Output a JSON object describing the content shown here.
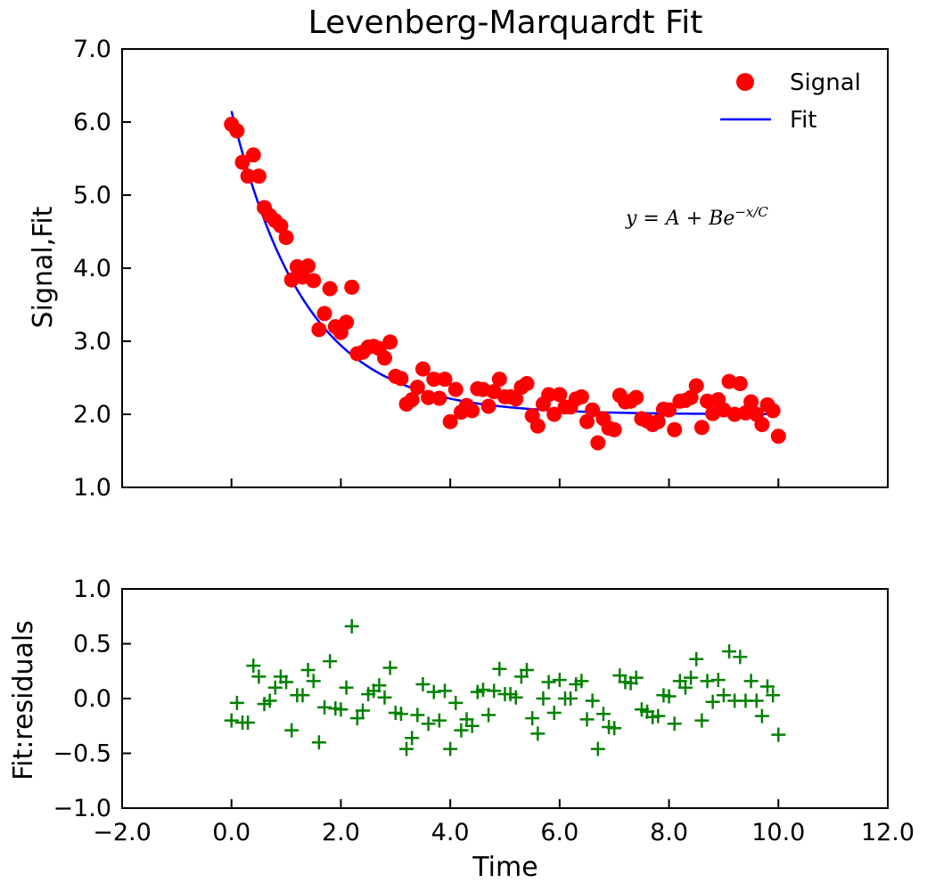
{
  "chart_data": [
    {
      "type": "scatter",
      "title": "Levenberg-Marquardt Fit",
      "xlabel": "",
      "ylabel": "Signal,Fit",
      "xlim": [
        -2,
        12
      ],
      "ylim": [
        1,
        7
      ],
      "xticks": [
        0,
        2,
        4,
        6,
        8,
        10
      ],
      "yticks": [
        1,
        2,
        3,
        4,
        5,
        6,
        7
      ],
      "ytick_labels": [
        "1.0",
        "2.0",
        "3.0",
        "4.0",
        "5.0",
        "6.0",
        "7.0"
      ],
      "legend": {
        "position": "top-right",
        "entries": [
          "Signal",
          "Fit"
        ]
      },
      "annotation": {
        "prefix": "y = A + Be",
        "superscript": "−x/C"
      },
      "fit_params": {
        "A": 2.0,
        "B": 4.15,
        "C": 1.35
      },
      "series": [
        {
          "name": "Signal",
          "kind": "scatter",
          "color": "#ff0000",
          "marker": "circle",
          "x": [
            0.0,
            0.1,
            0.2,
            0.3,
            0.4,
            0.5,
            0.6,
            0.7,
            0.8,
            0.9,
            1.0,
            1.1,
            1.2,
            1.3,
            1.4,
            1.5,
            1.6,
            1.7,
            1.8,
            1.9,
            2.0,
            2.1,
            2.2,
            2.3,
            2.4,
            2.5,
            2.6,
            2.7,
            2.8,
            2.9,
            3.0,
            3.1,
            3.2,
            3.3,
            3.4,
            3.5,
            3.6,
            3.7,
            3.8,
            3.9,
            4.0,
            4.1,
            4.2,
            4.3,
            4.4,
            4.5,
            4.6,
            4.7,
            4.8,
            4.9,
            5.0,
            5.1,
            5.2,
            5.3,
            5.4,
            5.5,
            5.6,
            5.7,
            5.8,
            5.9,
            6.0,
            6.1,
            6.2,
            6.3,
            6.4,
            6.5,
            6.6,
            6.7,
            6.8,
            6.9,
            7.0,
            7.1,
            7.2,
            7.3,
            7.4,
            7.5,
            7.6,
            7.7,
            7.8,
            7.9,
            8.0,
            8.1,
            8.2,
            8.3,
            8.4,
            8.5,
            8.6,
            8.7,
            8.8,
            8.9,
            9.0,
            9.1,
            9.2,
            9.3,
            9.4,
            9.5,
            9.6,
            9.7,
            9.8,
            9.9,
            10.0
          ],
          "y": [
            5.97,
            5.88,
            5.45,
            5.26,
            5.55,
            5.26,
            4.83,
            4.72,
            4.65,
            4.58,
            4.42,
            3.84,
            4.02,
            3.88,
            4.03,
            3.83,
            3.16,
            3.38,
            3.72,
            3.2,
            3.12,
            3.26,
            3.74,
            2.83,
            2.85,
            2.92,
            2.93,
            2.9,
            2.77,
            2.99,
            2.52,
            2.49,
            2.14,
            2.2,
            2.37,
            2.62,
            2.23,
            2.48,
            2.22,
            2.48,
            1.9,
            2.34,
            2.03,
            2.12,
            2.05,
            2.35,
            2.34,
            2.11,
            2.31,
            2.48,
            2.24,
            2.24,
            2.21,
            2.37,
            2.42,
            1.98,
            1.84,
            2.14,
            2.27,
            2.0,
            2.27,
            2.1,
            2.1,
            2.21,
            2.24,
            1.9,
            2.06,
            1.61,
            1.94,
            1.81,
            1.79,
            2.26,
            2.17,
            2.18,
            2.23,
            1.94,
            1.91,
            1.86,
            1.9,
            2.07,
            2.06,
            1.79,
            2.18,
            2.19,
            2.23,
            2.39,
            1.82,
            2.18,
            2.01,
            2.2,
            2.06,
            2.45,
            2.0,
            2.42,
            2.02,
            2.17,
            2.0,
            1.86,
            2.13,
            2.05,
            1.7
          ]
        },
        {
          "name": "Fit",
          "kind": "line",
          "color": "#0000ff",
          "function": "A + B*exp(-x/C)",
          "x_range": [
            0,
            10
          ]
        }
      ]
    },
    {
      "type": "scatter",
      "title": "",
      "xlabel": "Time",
      "ylabel": "Fit:residuals",
      "xlim": [
        -2,
        12
      ],
      "ylim": [
        -1,
        1
      ],
      "xticks": [
        -2,
        0,
        2,
        4,
        6,
        8,
        10,
        12
      ],
      "xtick_labels": [
        "−2.0",
        "0.0",
        "2.0",
        "4.0",
        "6.0",
        "8.0",
        "10.0",
        "12.0"
      ],
      "yticks": [
        -1,
        -0.5,
        0,
        0.5,
        1
      ],
      "ytick_labels": [
        "−1.0",
        "−0.5",
        "0.0",
        "0.5",
        "1.0"
      ],
      "series": [
        {
          "name": "",
          "kind": "scatter",
          "color": "#008000",
          "marker": "plus",
          "x": [
            0.0,
            0.1,
            0.2,
            0.3,
            0.4,
            0.5,
            0.6,
            0.7,
            0.8,
            0.9,
            1.0,
            1.1,
            1.2,
            1.3,
            1.4,
            1.5,
            1.6,
            1.7,
            1.8,
            1.9,
            2.0,
            2.1,
            2.2,
            2.3,
            2.4,
            2.5,
            2.6,
            2.7,
            2.8,
            2.9,
            3.0,
            3.1,
            3.2,
            3.3,
            3.4,
            3.5,
            3.6,
            3.7,
            3.8,
            3.9,
            4.0,
            4.1,
            4.2,
            4.3,
            4.4,
            4.5,
            4.6,
            4.7,
            4.8,
            4.9,
            5.0,
            5.1,
            5.2,
            5.3,
            5.4,
            5.5,
            5.6,
            5.7,
            5.8,
            5.9,
            6.0,
            6.1,
            6.2,
            6.3,
            6.4,
            6.5,
            6.6,
            6.7,
            6.8,
            6.9,
            7.0,
            7.1,
            7.2,
            7.3,
            7.4,
            7.5,
            7.6,
            7.7,
            7.8,
            7.9,
            8.0,
            8.1,
            8.2,
            8.3,
            8.4,
            8.5,
            8.6,
            8.7,
            8.8,
            8.9,
            9.0,
            9.1,
            9.2,
            9.3,
            9.4,
            9.5,
            9.6,
            9.7,
            9.8,
            9.9,
            10.0
          ],
          "y": [
            -0.2,
            -0.04,
            -0.22,
            -0.22,
            0.3,
            0.2,
            -0.05,
            -0.02,
            0.1,
            0.2,
            0.15,
            -0.29,
            0.03,
            0.03,
            0.26,
            0.16,
            -0.4,
            -0.08,
            0.34,
            -0.09,
            -0.1,
            0.1,
            0.66,
            -0.18,
            -0.11,
            0.04,
            0.07,
            0.12,
            0.01,
            0.28,
            -0.13,
            -0.14,
            -0.46,
            -0.36,
            -0.15,
            0.13,
            -0.23,
            0.06,
            -0.2,
            0.07,
            -0.46,
            -0.04,
            -0.29,
            -0.19,
            -0.25,
            0.06,
            0.08,
            -0.15,
            0.07,
            0.27,
            0.04,
            0.04,
            0.01,
            0.2,
            0.26,
            -0.18,
            -0.32,
            0.0,
            0.15,
            -0.13,
            0.17,
            0.0,
            0.0,
            0.13,
            0.16,
            -0.19,
            -0.02,
            -0.46,
            -0.14,
            -0.26,
            -0.27,
            0.21,
            0.15,
            0.14,
            0.19,
            -0.1,
            -0.12,
            -0.17,
            -0.16,
            0.03,
            0.02,
            -0.23,
            0.16,
            0.1,
            0.19,
            0.36,
            -0.2,
            0.16,
            -0.03,
            0.17,
            0.03,
            0.43,
            -0.02,
            0.38,
            -0.02,
            0.16,
            -0.02,
            -0.16,
            0.11,
            0.03,
            -0.33
          ]
        }
      ]
    }
  ]
}
